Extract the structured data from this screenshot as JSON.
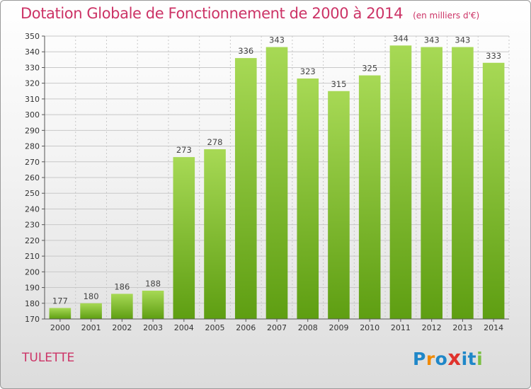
{
  "title": "Dotation Globale de Fonctionnement de 2000 à 2014",
  "unit": "(en milliers d'€)",
  "commune": "TULETTE",
  "logo": {
    "text": "Proxiti",
    "letters": [
      "P",
      "r",
      "o",
      "x",
      "i",
      "t",
      "i"
    ],
    "colors": [
      "#1f87c8",
      "#f08a00",
      "#1f87c8",
      "#e0332d",
      "#1f87c8",
      "#1f87c8",
      "#7bc043"
    ]
  },
  "colors": {
    "title": "#cc3366",
    "bar_top": "#a7d955",
    "bar_bottom": "#5e9e12",
    "grid": "#c8c8c8",
    "axis": "#555555"
  },
  "chart_data": {
    "type": "bar",
    "categories": [
      "2000",
      "2001",
      "2002",
      "2003",
      "2004",
      "2005",
      "2006",
      "2007",
      "2008",
      "2009",
      "2010",
      "2011",
      "2012",
      "2013",
      "2014"
    ],
    "values": [
      177,
      180,
      186,
      188,
      273,
      278,
      336,
      343,
      323,
      315,
      325,
      344,
      343,
      343,
      333
    ],
    "title": "Dotation Globale de Fonctionnement de 2000 à 2014",
    "xlabel": "",
    "ylabel": "",
    "ylim": [
      170,
      350
    ],
    "yticks": [
      170,
      180,
      190,
      200,
      210,
      220,
      230,
      240,
      250,
      260,
      270,
      280,
      290,
      300,
      310,
      320,
      330,
      340,
      350
    ],
    "grid": true,
    "data_labels": true
  }
}
